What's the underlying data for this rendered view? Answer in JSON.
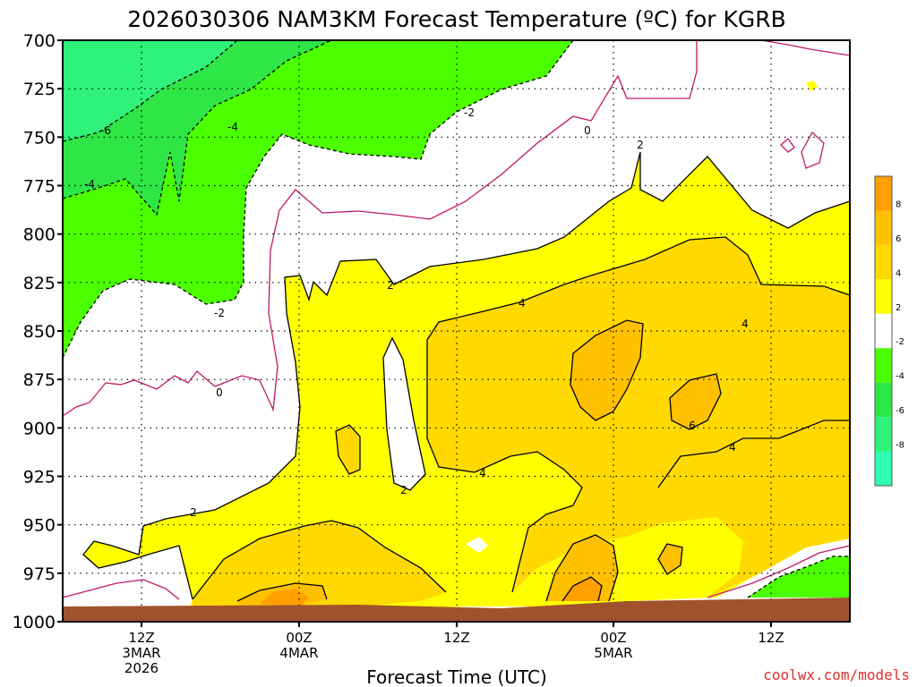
{
  "chart_data": {
    "type": "heatmap",
    "title": "2026030306 NAM3KM Forecast Temperature (ºC) for KGRB",
    "xlabel": "Forecast Time (UTC)",
    "ylabel": "",
    "y_ticks": [
      "700",
      "725",
      "750",
      "775",
      "800",
      "825",
      "850",
      "875",
      "900",
      "925",
      "950",
      "975",
      "1000"
    ],
    "x_tick_labels": [
      {
        "lines": [
          "12Z",
          "3MAR",
          "2026"
        ]
      },
      {
        "lines": [
          "00Z",
          "4MAR"
        ]
      },
      {
        "lines": [
          "12Z"
        ]
      },
      {
        "lines": [
          "00Z",
          "5MAR"
        ]
      },
      {
        "lines": [
          "12Z"
        ]
      }
    ],
    "legend": {
      "position": "right",
      "bins": [
        {
          "range": "above 8",
          "color": "#ff9f00"
        },
        {
          "range": "6 to 8",
          "color": "#ffc000"
        },
        {
          "range": "4 to 6",
          "color": "#ffd900"
        },
        {
          "range": "2 to 4",
          "color": "#ffff00"
        },
        {
          "range": "-2 to 2",
          "color": "#ffffff"
        },
        {
          "range": "-4 to -2",
          "color": "#4bff00"
        },
        {
          "range": "-6 to -4",
          "color": "#2ee645"
        },
        {
          "range": "-8 to -6",
          "color": "#2ef27a"
        },
        {
          "range": "below -8",
          "color": "#2effb0"
        }
      ],
      "tick_labels": [
        "8",
        "6",
        "4",
        "2",
        "-2",
        "-4",
        "-6",
        "-8"
      ]
    },
    "contour_labels": [
      "-6",
      "-4",
      "-4",
      "-2",
      "-2",
      "0",
      "0",
      "2",
      "2",
      "2",
      "2",
      "4",
      "4",
      "4",
      "4",
      "6"
    ],
    "regions": [
      {
        "name": "region-minus6",
        "color": "#2ef27a"
      },
      {
        "name": "region-minus4",
        "color": "#2ee645"
      },
      {
        "name": "region-minus2",
        "color": "#4bff00"
      },
      {
        "name": "region-2to4",
        "color": "#ffff00"
      },
      {
        "name": "region-4to6",
        "color": "#ffd900"
      },
      {
        "name": "region-6to8",
        "color": "#ffc000"
      },
      {
        "name": "region-above8",
        "color": "#ff9f00"
      },
      {
        "name": "ground",
        "color": "#a0522d"
      }
    ],
    "credit": "coolwx.com/models"
  }
}
